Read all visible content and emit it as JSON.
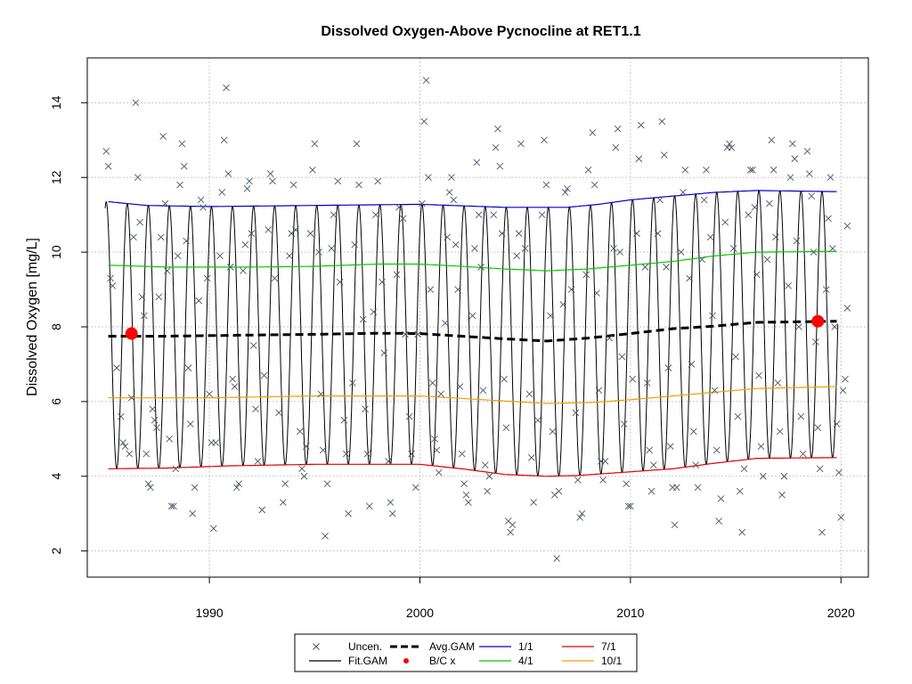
{
  "chart_data": {
    "type": "line",
    "title": "Dissolved Oxygen-Above Pycnocline at RET1.1",
    "xlabel": "",
    "ylabel": "Dissolved Oxygen [mg/L]",
    "xlim": [
      1984.2,
      2021.3
    ],
    "ylim": [
      1.3,
      15.2
    ],
    "x_ticks": [
      1990,
      2000,
      2010,
      2020
    ],
    "y_ticks": [
      2,
      4,
      6,
      8,
      10,
      12,
      14
    ],
    "grid": true,
    "legend_position": "bottom-center",
    "legend": [
      {
        "label": "Uncen.",
        "symbol": "x",
        "color": "#4a5568"
      },
      {
        "label": "Fit.GAM",
        "symbol": "line",
        "color": "#000000"
      },
      {
        "label": "Avg.GAM",
        "symbol": "dashed-line",
        "color": "#000000"
      },
      {
        "label": "B/C x",
        "symbol": "dot",
        "color": "#ff0000"
      },
      {
        "label": "1/1",
        "symbol": "line",
        "color": "#0000cc"
      },
      {
        "label": "4/1",
        "symbol": "line",
        "color": "#00cc00"
      },
      {
        "label": "7/1",
        "symbol": "line",
        "color": "#dd0000"
      },
      {
        "label": "10/1",
        "symbol": "line",
        "color": "#f0a000"
      }
    ],
    "series": [
      {
        "name": "1/1",
        "color": "#0000cc",
        "x": [
          1985.2,
          1987,
          1990,
          1995,
          2000,
          2004,
          2007,
          2008.5,
          2010,
          2012,
          2014,
          2016,
          2019.8
        ],
        "values": [
          11.35,
          11.25,
          11.22,
          11.25,
          11.28,
          11.2,
          11.2,
          11.28,
          11.4,
          11.5,
          11.6,
          11.65,
          11.62
        ]
      },
      {
        "name": "4/1",
        "color": "#00cc00",
        "x": [
          1985.2,
          1988,
          1992,
          1995,
          1998,
          2000,
          2002,
          2004,
          2006,
          2008,
          2010,
          2012,
          2014,
          2016,
          2019.8
        ],
        "values": [
          9.65,
          9.6,
          9.6,
          9.62,
          9.68,
          9.68,
          9.62,
          9.55,
          9.5,
          9.55,
          9.65,
          9.75,
          9.9,
          10.0,
          10.02
        ]
      },
      {
        "name": "10/1",
        "color": "#f0a000",
        "x": [
          1985.2,
          1990,
          1995,
          2000,
          2003,
          2006,
          2008,
          2010,
          2013,
          2016,
          2019.8
        ],
        "values": [
          6.1,
          6.1,
          6.15,
          6.15,
          6.05,
          5.95,
          5.97,
          6.05,
          6.2,
          6.35,
          6.4
        ]
      },
      {
        "name": "7/1",
        "color": "#dd0000",
        "x": [
          1985.2,
          1988,
          1991,
          1995,
          2000,
          2002,
          2004,
          2006,
          2007.5,
          2010,
          2012,
          2014,
          2016,
          2019.8
        ],
        "values": [
          4.2,
          4.22,
          4.28,
          4.32,
          4.32,
          4.2,
          4.05,
          4.0,
          4.02,
          4.12,
          4.2,
          4.35,
          4.48,
          4.5
        ]
      },
      {
        "name": "Avg.GAM",
        "color": "#000000",
        "dashed": true,
        "x": [
          1985.2,
          1988,
          1992,
          1995,
          1998,
          2000,
          2002,
          2004,
          2006,
          2008,
          2010,
          2012,
          2014,
          2016,
          2019.8
        ],
        "values": [
          7.75,
          7.75,
          7.78,
          7.8,
          7.83,
          7.82,
          7.75,
          7.68,
          7.62,
          7.7,
          7.82,
          7.95,
          8.02,
          8.12,
          8.15
        ]
      },
      {
        "name": "Fit.GAM",
        "color": "#000000",
        "x_start": 1985.05,
        "x_end": 2019.85,
        "phase_peak_year_fraction": 0.1,
        "min_series": "7/1",
        "max_series": "1/1"
      }
    ],
    "bc_points": [
      {
        "x": 1986.3,
        "y": 7.82
      },
      {
        "x": 2018.9,
        "y": 8.15
      }
    ],
    "uncensored_points": [
      [
        1985.1,
        12.7
      ],
      [
        1985.2,
        12.3
      ],
      [
        1985.3,
        9.3
      ],
      [
        1985.4,
        9.1
      ],
      [
        1985.6,
        6.9
      ],
      [
        1985.8,
        5.6
      ],
      [
        1985.9,
        4.9
      ],
      [
        1986.0,
        4.8
      ],
      [
        1986.2,
        4.6
      ],
      [
        1986.3,
        6.1
      ],
      [
        1986.4,
        10.4
      ],
      [
        1986.5,
        14.0
      ],
      [
        1986.6,
        12.0
      ],
      [
        1986.7,
        10.8
      ],
      [
        1986.8,
        8.8
      ],
      [
        1986.9,
        8.3
      ],
      [
        1987.0,
        4.6
      ],
      [
        1987.1,
        3.8
      ],
      [
        1987.2,
        3.7
      ],
      [
        1987.3,
        5.8
      ],
      [
        1987.4,
        5.5
      ],
      [
        1987.5,
        5.3
      ],
      [
        1987.6,
        8.8
      ],
      [
        1987.7,
        10.4
      ],
      [
        1987.8,
        13.1
      ],
      [
        1987.9,
        11.3
      ],
      [
        1988.0,
        9.5
      ],
      [
        1988.1,
        5.0
      ],
      [
        1988.2,
        3.2
      ],
      [
        1988.3,
        3.2
      ],
      [
        1988.4,
        4.2
      ],
      [
        1988.5,
        9.9
      ],
      [
        1988.6,
        11.8
      ],
      [
        1988.7,
        12.9
      ],
      [
        1988.8,
        12.3
      ],
      [
        1988.9,
        10.3
      ],
      [
        1989.0,
        6.9
      ],
      [
        1989.1,
        5.4
      ],
      [
        1989.2,
        3.0
      ],
      [
        1989.3,
        3.7
      ],
      [
        1989.5,
        8.7
      ],
      [
        1989.6,
        11.4
      ],
      [
        1989.7,
        11.2
      ],
      [
        1989.9,
        9.3
      ],
      [
        1990.0,
        6.2
      ],
      [
        1990.1,
        4.9
      ],
      [
        1990.2,
        2.6
      ],
      [
        1990.3,
        4.9
      ],
      [
        1990.5,
        9.9
      ],
      [
        1990.6,
        11.6
      ],
      [
        1990.7,
        13.0
      ],
      [
        1990.8,
        14.4
      ],
      [
        1990.9,
        12.1
      ],
      [
        1991.0,
        9.6
      ],
      [
        1991.1,
        6.6
      ],
      [
        1991.2,
        6.4
      ],
      [
        1991.3,
        3.7
      ],
      [
        1991.4,
        3.8
      ],
      [
        1991.6,
        9.5
      ],
      [
        1991.7,
        10.2
      ],
      [
        1991.8,
        11.7
      ],
      [
        1991.9,
        11.9
      ],
      [
        1992.0,
        10.5
      ],
      [
        1992.1,
        7.5
      ],
      [
        1992.2,
        5.8
      ],
      [
        1992.3,
        4.4
      ],
      [
        1992.5,
        3.1
      ],
      [
        1992.6,
        6.7
      ],
      [
        1992.8,
        10.6
      ],
      [
        1992.9,
        12.1
      ],
      [
        1993.0,
        11.9
      ],
      [
        1993.1,
        9.3
      ],
      [
        1993.3,
        5.7
      ],
      [
        1993.5,
        3.3
      ],
      [
        1993.6,
        3.8
      ],
      [
        1993.8,
        9.9
      ],
      [
        1993.9,
        10.5
      ],
      [
        1994.0,
        11.8
      ],
      [
        1994.1,
        10.6
      ],
      [
        1994.3,
        5.2
      ],
      [
        1994.4,
        4.2
      ],
      [
        1994.5,
        4.0
      ],
      [
        1994.6,
        4.8
      ],
      [
        1994.8,
        10.5
      ],
      [
        1994.9,
        12.2
      ],
      [
        1995.0,
        12.9
      ],
      [
        1995.2,
        10.0
      ],
      [
        1995.3,
        6.2
      ],
      [
        1995.4,
        4.7
      ],
      [
        1995.5,
        2.4
      ],
      [
        1995.6,
        3.8
      ],
      [
        1995.8,
        10.1
      ],
      [
        1995.9,
        11.0
      ],
      [
        1996.1,
        11.9
      ],
      [
        1996.2,
        9.2
      ],
      [
        1996.4,
        5.5
      ],
      [
        1996.5,
        4.6
      ],
      [
        1996.6,
        3.0
      ],
      [
        1996.8,
        6.5
      ],
      [
        1996.9,
        10.2
      ],
      [
        1997.0,
        12.9
      ],
      [
        1997.1,
        11.8
      ],
      [
        1997.3,
        8.2
      ],
      [
        1997.4,
        5.8
      ],
      [
        1997.5,
        4.6
      ],
      [
        1997.6,
        3.2
      ],
      [
        1997.8,
        8.4
      ],
      [
        1997.9,
        11.0
      ],
      [
        1998.0,
        11.9
      ],
      [
        1998.2,
        9.2
      ],
      [
        1998.3,
        7.3
      ],
      [
        1998.5,
        4.4
      ],
      [
        1998.6,
        3.3
      ],
      [
        1998.7,
        3.0
      ],
      [
        1998.9,
        9.4
      ],
      [
        1999.0,
        11.2
      ],
      [
        1999.2,
        10.9
      ],
      [
        1999.3,
        7.8
      ],
      [
        1999.5,
        5.6
      ],
      [
        1999.6,
        4.6
      ],
      [
        1999.8,
        3.7
      ],
      [
        1999.9,
        7.8
      ],
      [
        2000.1,
        11.3
      ],
      [
        2000.2,
        13.5
      ],
      [
        2000.3,
        14.6
      ],
      [
        2000.4,
        12.0
      ],
      [
        2000.5,
        9.0
      ],
      [
        2000.6,
        6.5
      ],
      [
        2000.7,
        5.0
      ],
      [
        2000.8,
        4.7
      ],
      [
        2000.9,
        4.1
      ],
      [
        2001.0,
        6.2
      ],
      [
        2001.2,
        8.1
      ],
      [
        2001.3,
        10.4
      ],
      [
        2001.4,
        11.6
      ],
      [
        2001.5,
        12.0
      ],
      [
        2001.6,
        11.4
      ],
      [
        2001.7,
        10.2
      ],
      [
        2001.8,
        9.0
      ],
      [
        2001.9,
        6.4
      ],
      [
        2002.0,
        4.6
      ],
      [
        2002.1,
        3.8
      ],
      [
        2002.2,
        3.5
      ],
      [
        2002.3,
        3.3
      ],
      [
        2002.5,
        8.3
      ],
      [
        2002.6,
        10.1
      ],
      [
        2002.7,
        12.4
      ],
      [
        2002.8,
        11.0
      ],
      [
        2002.9,
        9.6
      ],
      [
        2003.0,
        6.3
      ],
      [
        2003.1,
        4.3
      ],
      [
        2003.2,
        3.6
      ],
      [
        2003.3,
        4.0
      ],
      [
        2003.5,
        11.0
      ],
      [
        2003.6,
        12.8
      ],
      [
        2003.7,
        13.3
      ],
      [
        2003.8,
        12.3
      ],
      [
        2003.9,
        10.5
      ],
      [
        2004.0,
        6.6
      ],
      [
        2004.1,
        5.3
      ],
      [
        2004.2,
        2.8
      ],
      [
        2004.3,
        2.5
      ],
      [
        2004.4,
        2.7
      ],
      [
        2004.6,
        9.9
      ],
      [
        2004.7,
        10.5
      ],
      [
        2004.8,
        12.9
      ],
      [
        2005.0,
        10.1
      ],
      [
        2005.2,
        6.2
      ],
      [
        2005.3,
        4.5
      ],
      [
        2005.4,
        3.3
      ],
      [
        2005.6,
        5.5
      ],
      [
        2005.8,
        11.0
      ],
      [
        2005.9,
        13.0
      ],
      [
        2006.0,
        11.8
      ],
      [
        2006.2,
        8.3
      ],
      [
        2006.3,
        5.2
      ],
      [
        2006.4,
        3.5
      ],
      [
        2006.5,
        1.8
      ],
      [
        2006.6,
        3.6
      ],
      [
        2006.8,
        8.6
      ],
      [
        2006.9,
        11.6
      ],
      [
        2007.0,
        11.7
      ],
      [
        2007.2,
        9.0
      ],
      [
        2007.4,
        5.7
      ],
      [
        2007.5,
        3.9
      ],
      [
        2007.6,
        2.9
      ],
      [
        2007.7,
        3.0
      ],
      [
        2007.9,
        9.4
      ],
      [
        2008.0,
        12.2
      ],
      [
        2008.2,
        13.2
      ],
      [
        2008.3,
        11.8
      ],
      [
        2008.4,
        8.9
      ],
      [
        2008.5,
        6.3
      ],
      [
        2008.6,
        4.4
      ],
      [
        2008.7,
        3.9
      ],
      [
        2008.8,
        4.4
      ],
      [
        2009.0,
        7.7
      ],
      [
        2009.2,
        10.1
      ],
      [
        2009.3,
        12.8
      ],
      [
        2009.4,
        13.3
      ],
      [
        2009.5,
        10.0
      ],
      [
        2009.6,
        7.2
      ],
      [
        2009.7,
        5.4
      ],
      [
        2009.8,
        3.8
      ],
      [
        2009.9,
        3.2
      ],
      [
        2010.0,
        3.2
      ],
      [
        2010.1,
        6.6
      ],
      [
        2010.3,
        10.5
      ],
      [
        2010.4,
        12.5
      ],
      [
        2010.5,
        13.4
      ],
      [
        2010.7,
        9.6
      ],
      [
        2010.8,
        6.5
      ],
      [
        2010.9,
        4.7
      ],
      [
        2011.0,
        3.6
      ],
      [
        2011.1,
        4.3
      ],
      [
        2011.3,
        10.5
      ],
      [
        2011.4,
        11.4
      ],
      [
        2011.5,
        13.5
      ],
      [
        2011.6,
        12.6
      ],
      [
        2011.7,
        9.6
      ],
      [
        2011.8,
        6.9
      ],
      [
        2011.9,
        4.8
      ],
      [
        2012.0,
        3.7
      ],
      [
        2012.1,
        2.7
      ],
      [
        2012.2,
        3.7
      ],
      [
        2012.4,
        10.0
      ],
      [
        2012.5,
        11.6
      ],
      [
        2012.6,
        12.2
      ],
      [
        2012.8,
        9.3
      ],
      [
        2012.9,
        7.0
      ],
      [
        2013.0,
        5.2
      ],
      [
        2013.1,
        4.3
      ],
      [
        2013.2,
        3.7
      ],
      [
        2013.4,
        9.8
      ],
      [
        2013.5,
        11.4
      ],
      [
        2013.6,
        12.2
      ],
      [
        2013.8,
        10.4
      ],
      [
        2013.9,
        8.3
      ],
      [
        2014.0,
        6.3
      ],
      [
        2014.1,
        4.7
      ],
      [
        2014.2,
        2.8
      ],
      [
        2014.3,
        3.4
      ],
      [
        2014.5,
        10.8
      ],
      [
        2014.6,
        12.8
      ],
      [
        2014.7,
        12.9
      ],
      [
        2014.8,
        12.8
      ],
      [
        2014.9,
        10.1
      ],
      [
        2015.0,
        7.2
      ],
      [
        2015.1,
        5.6
      ],
      [
        2015.2,
        3.6
      ],
      [
        2015.3,
        2.5
      ],
      [
        2015.4,
        4.2
      ],
      [
        2015.6,
        11.0
      ],
      [
        2015.7,
        12.2
      ],
      [
        2015.8,
        12.2
      ],
      [
        2015.9,
        11.2
      ],
      [
        2016.0,
        9.4
      ],
      [
        2016.1,
        6.7
      ],
      [
        2016.2,
        4.8
      ],
      [
        2016.3,
        4.0
      ],
      [
        2016.5,
        9.8
      ],
      [
        2016.6,
        11.3
      ],
      [
        2016.7,
        13.0
      ],
      [
        2016.8,
        12.2
      ],
      [
        2016.9,
        10.4
      ],
      [
        2017.0,
        6.5
      ],
      [
        2017.1,
        5.2
      ],
      [
        2017.2,
        3.5
      ],
      [
        2017.3,
        4.0
      ],
      [
        2017.5,
        9.1
      ],
      [
        2017.6,
        12.0
      ],
      [
        2017.7,
        12.9
      ],
      [
        2017.8,
        12.5
      ],
      [
        2017.9,
        10.3
      ],
      [
        2018.0,
        8.0
      ],
      [
        2018.1,
        5.6
      ],
      [
        2018.2,
        4.6
      ],
      [
        2018.4,
        12.7
      ],
      [
        2018.5,
        12.1
      ],
      [
        2018.6,
        11.5
      ],
      [
        2018.7,
        10.0
      ],
      [
        2018.8,
        7.6
      ],
      [
        2018.9,
        5.3
      ],
      [
        2019.0,
        4.2
      ],
      [
        2019.1,
        2.5
      ],
      [
        2019.3,
        9.0
      ],
      [
        2019.4,
        10.9
      ],
      [
        2019.5,
        12.0
      ],
      [
        2019.6,
        10.1
      ],
      [
        2019.7,
        8.0
      ],
      [
        2019.8,
        5.4
      ],
      [
        2019.9,
        4.1
      ],
      [
        2020.0,
        2.9
      ],
      [
        2020.1,
        6.3
      ],
      [
        2020.2,
        6.6
      ],
      [
        2020.3,
        8.5
      ],
      [
        2020.3,
        10.7
      ]
    ]
  }
}
